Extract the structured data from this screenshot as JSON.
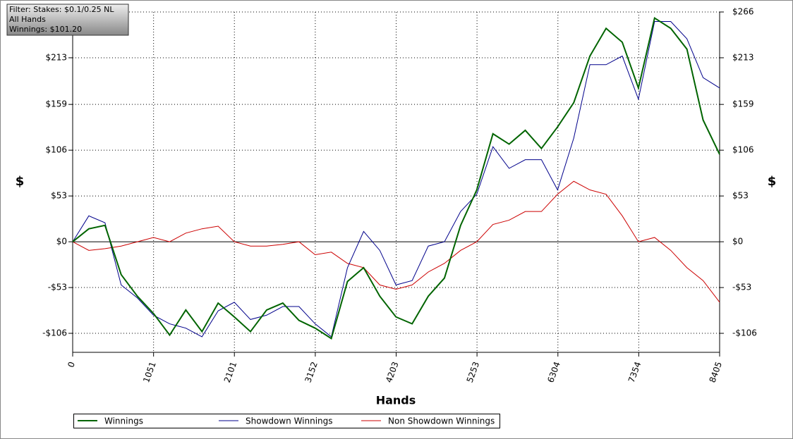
{
  "chart_data": {
    "type": "line",
    "info": [
      "Filter: Stakes: $0.1/0.25 NL",
      "All Hands",
      "Winnings: $101.20"
    ],
    "x_label": "Hands",
    "y_label": "$",
    "y2_label": "$",
    "x": [
      0,
      210,
      420,
      630,
      840,
      1050,
      1260,
      1470,
      1680,
      1890,
      2100,
      2310,
      2520,
      2730,
      2940,
      3150,
      3360,
      3570,
      3780,
      3990,
      4200,
      4410,
      4620,
      4830,
      5040,
      5250,
      5460,
      5670,
      5880,
      6090,
      6300,
      6510,
      6720,
      6930,
      7140,
      7350,
      7560,
      7770,
      7980,
      8190,
      8405
    ],
    "series": [
      {
        "name": "Winnings",
        "color": "#006400",
        "width": 2,
        "values": [
          0,
          15,
          19,
          -38,
          -63,
          -83,
          -108,
          -79,
          -104,
          -71,
          -87,
          -104,
          -79,
          -71,
          -91,
          -100,
          -112,
          -46,
          -30,
          -63,
          -87,
          -95,
          -63,
          -42,
          19,
          60,
          125,
          113,
          129,
          108,
          133,
          161,
          215,
          247,
          231,
          178,
          259,
          247,
          223,
          141,
          101.2
        ]
      },
      {
        "name": "Showdown Winnings",
        "color": "#00008b",
        "width": 1,
        "values": [
          0,
          30,
          22,
          -50,
          -65,
          -85,
          -95,
          -100,
          -110,
          -80,
          -70,
          -90,
          -85,
          -75,
          -75,
          -95,
          -110,
          -30,
          12,
          -10,
          -50,
          -45,
          -5,
          0,
          35,
          55,
          110,
          85,
          95,
          95,
          60,
          120,
          205,
          205,
          215,
          165,
          255,
          255,
          235,
          190,
          178
        ]
      },
      {
        "name": "Non Showdown Winnings",
        "color": "#cc0000",
        "width": 1,
        "values": [
          0,
          -10,
          -8,
          -5,
          0,
          5,
          0,
          10,
          15,
          18,
          0,
          -5,
          -5,
          -3,
          0,
          -15,
          -12,
          -25,
          -30,
          -50,
          -55,
          -50,
          -35,
          -25,
          -10,
          0,
          20,
          25,
          35,
          35,
          55,
          70,
          60,
          55,
          30,
          0,
          5,
          -10,
          -30,
          -45,
          -70
        ]
      }
    ],
    "xlim": [
      0,
      8405
    ],
    "xticks": [
      0,
      1051,
      2101,
      3152,
      4203,
      5253,
      6304,
      7354,
      8405
    ],
    "ylim": [
      -128,
      266
    ],
    "yticks": [
      {
        "value": -106,
        "label": "-$106"
      },
      {
        "value": -53,
        "label": "-$53"
      },
      {
        "value": 0,
        "label": "$0"
      },
      {
        "value": 53,
        "label": "$53"
      },
      {
        "value": 106,
        "label": "$106"
      },
      {
        "value": 159,
        "label": "$159"
      },
      {
        "value": 213,
        "label": "$213"
      },
      {
        "value": 266,
        "label": "$266"
      }
    ],
    "grid": true
  }
}
